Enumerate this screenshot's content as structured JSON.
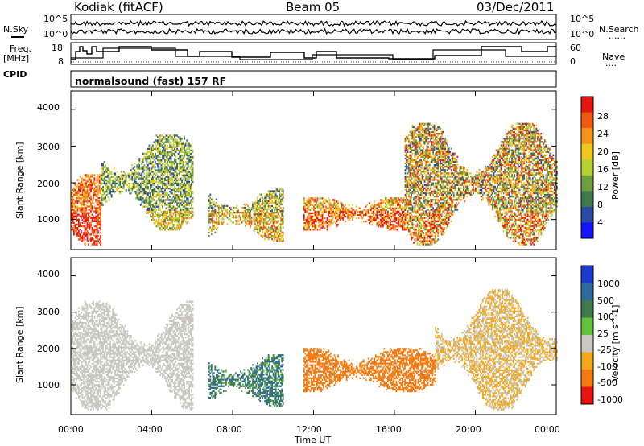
{
  "header": {
    "station": "Kodiak (fitACF)",
    "beam": "Beam 05",
    "date": "03/Dec/2011"
  },
  "side_labels": {
    "nsky": "N.Sky",
    "nsearch": "N.Search",
    "freq": "Freq.",
    "freq_unit": "[MHz]",
    "nave": "Nave",
    "cpid": "CPID",
    "dotted": "......",
    "dotted_short": "...."
  },
  "mode_text": "normalsound (fast) 157 RF",
  "noise_panel": {
    "left_ticks": [
      "10^5",
      "10^0"
    ],
    "right_ticks": [
      "10^5",
      "10^0"
    ]
  },
  "freq_panel": {
    "left_ticks": [
      "18",
      "8"
    ],
    "right_ticks": [
      "60",
      "0"
    ]
  },
  "panels": {
    "power": {
      "ylabel": "Slant Range [km]",
      "yticks": [
        "4000",
        "3000",
        "2000",
        "1000"
      ],
      "colorbar_label": "Power [dB]",
      "colorbar_ticks": [
        "28",
        "24",
        "20",
        "16",
        "12",
        "8",
        "4"
      ],
      "colors": [
        "#e8140f",
        "#f25a12",
        "#f7921a",
        "#f0c81c",
        "#b7d233",
        "#6fa040",
        "#3f7a4a",
        "#2a4aa8",
        "#1414ff"
      ]
    },
    "velocity": {
      "ylabel": "Slant Range [km]",
      "yticks": [
        "4000",
        "3000",
        "2000",
        "1000"
      ],
      "colorbar_label": "Velocity [m s^-1]",
      "colorbar_ticks": [
        "1000",
        "500",
        "100",
        "25",
        "-25",
        "-100",
        "-500",
        "-1000"
      ],
      "colors": [
        "#1a3bd2",
        "#2e6aa0",
        "#3f7a4a",
        "#61c23e",
        "#c8c8c0",
        "#f2a81c",
        "#f57a10",
        "#e8140f"
      ]
    }
  },
  "x_axis": {
    "ticks": [
      "00:00",
      "04:00",
      "08:00",
      "12:00",
      "16:00",
      "20:00",
      "00:00"
    ],
    "label": "Time UT"
  },
  "chart_data": [
    {
      "type": "heatmap",
      "title": "Power",
      "xlabel": "Time UT",
      "ylabel": "Slant Range [km]",
      "xlim": [
        "00:00",
        "24:00"
      ],
      "ylim": [
        180,
        4500
      ],
      "colorbar": {
        "label": "Power [dB]",
        "range": [
          0,
          30
        ]
      },
      "echo_regions": [
        {
          "time": [
            0.0,
            1.5
          ],
          "range_km": [
            300,
            2200
          ],
          "power_db": [
            18,
            30
          ]
        },
        {
          "time": [
            1.5,
            6.0
          ],
          "range_km": [
            700,
            3300
          ],
          "power_db": [
            4,
            20
          ]
        },
        {
          "time": [
            6.8,
            10.5
          ],
          "range_km": [
            400,
            1800
          ],
          "power_db": [
            4,
            24
          ]
        },
        {
          "time": [
            11.5,
            16.5
          ],
          "range_km": [
            700,
            1600
          ],
          "power_db": [
            12,
            30
          ]
        },
        {
          "time": [
            16.5,
            24.0
          ],
          "range_km": [
            300,
            3600
          ],
          "power_db": [
            4,
            30
          ]
        }
      ]
    },
    {
      "type": "heatmap",
      "title": "Velocity",
      "xlabel": "Time UT",
      "ylabel": "Slant Range [km]",
      "xlim": [
        "00:00",
        "24:00"
      ],
      "ylim": [
        180,
        4500
      ],
      "colorbar": {
        "label": "Velocity [m s^-1]",
        "range": [
          -1000,
          1000
        ]
      },
      "echo_regions": [
        {
          "time": [
            0.0,
            6.0
          ],
          "range_km": [
            300,
            3300
          ],
          "velocity": [
            -25,
            25
          ]
        },
        {
          "time": [
            6.8,
            10.5
          ],
          "range_km": [
            400,
            1800
          ],
          "velocity": [
            25,
            500
          ]
        },
        {
          "time": [
            11.5,
            18.0
          ],
          "range_km": [
            800,
            2000
          ],
          "velocity": [
            -500,
            -100
          ]
        },
        {
          "time": [
            18.0,
            24.0
          ],
          "range_km": [
            300,
            3600
          ],
          "velocity": [
            -100,
            25
          ]
        }
      ]
    }
  ]
}
